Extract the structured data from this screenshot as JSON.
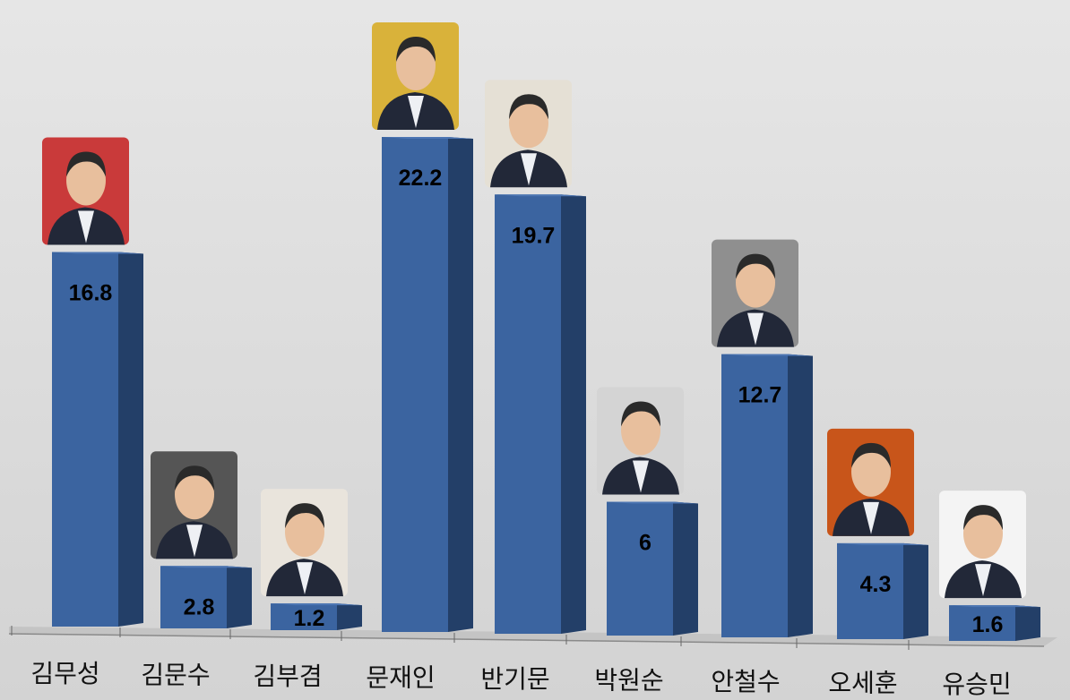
{
  "chart_data": {
    "type": "bar",
    "categories": [
      "김무성",
      "김문수",
      "김부겸",
      "문재인",
      "반기문",
      "박원순",
      "안철수",
      "오세훈",
      "유승민"
    ],
    "values": [
      16.8,
      2.8,
      1.2,
      22.2,
      19.7,
      6,
      12.7,
      4.3,
      1.6
    ],
    "color": "#3b64a0"
  }
}
